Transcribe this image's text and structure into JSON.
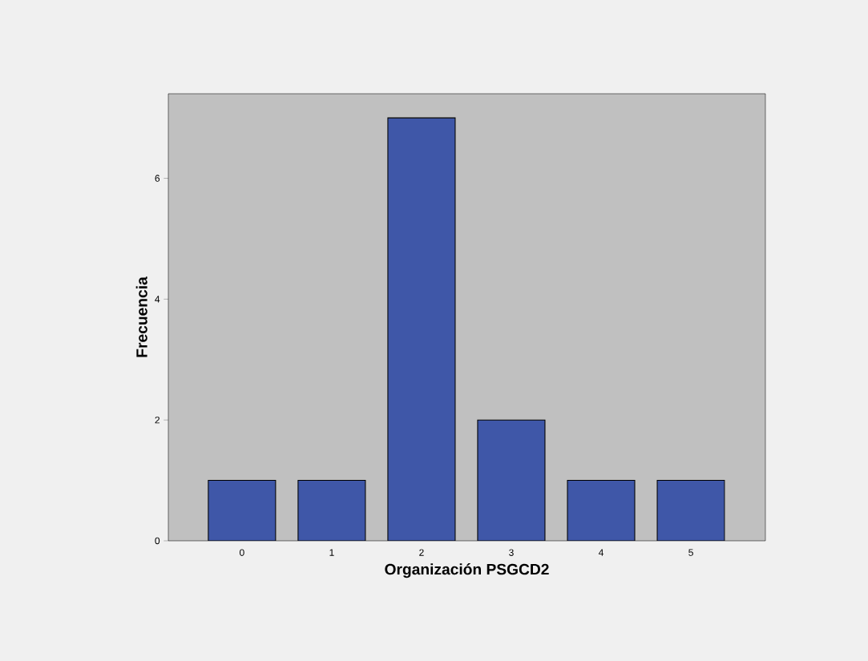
{
  "chart_data": {
    "type": "bar",
    "xlabel": "Organización PSGCD2",
    "ylabel": "Frecuencia",
    "categories": [
      "0",
      "1",
      "2",
      "3",
      "4",
      "5"
    ],
    "values": [
      1,
      1,
      7,
      2,
      1,
      1
    ],
    "color": "#3f57a8",
    "ylim": [
      0,
      7.4
    ],
    "yticks": [
      0,
      2,
      4,
      6
    ],
    "grid": false
  }
}
